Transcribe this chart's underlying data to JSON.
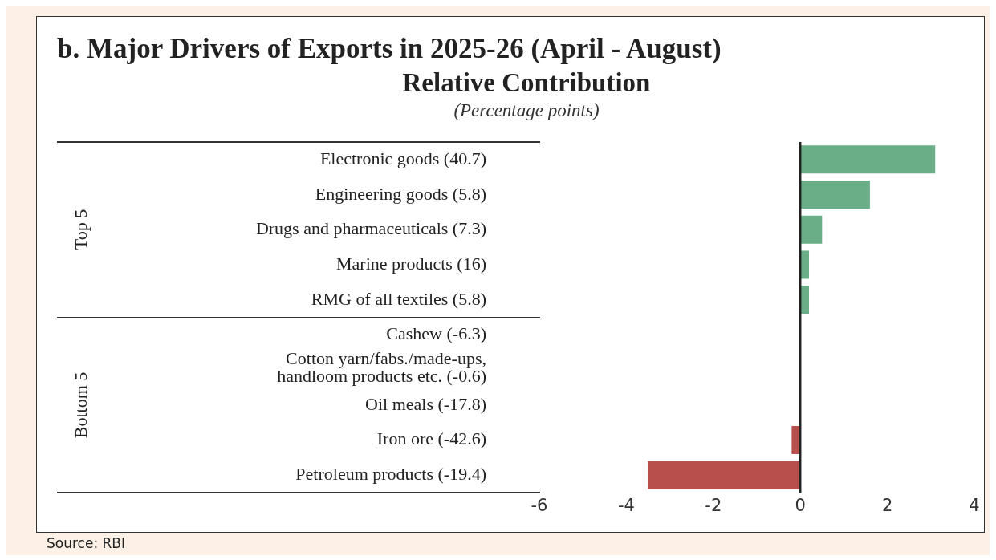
{
  "chart_data": {
    "type": "bar",
    "orientation": "horizontal",
    "title": "b. Major Drivers of Exports in 2025-26 (April - August)",
    "subtitle": "Relative Contribution",
    "xlabel": "(Percentage points)",
    "categories": [
      "Electronic goods (40.7)",
      "Engineering goods (5.8)",
      "Drugs and pharmaceuticals (7.3)",
      "Marine products (16)",
      "RMG of all textiles (5.8)",
      "Cashew (-6.3)",
      "Cotton yarn/fabs./made-ups, handloom products etc. (-0.6)",
      "Oil meals (-17.8)",
      "Iron ore (-42.6)",
      "Petroleum products (-19.4)"
    ],
    "values": [
      3.1,
      1.6,
      0.5,
      0.2,
      0.2,
      -0.02,
      -0.01,
      -0.01,
      -0.2,
      -3.5
    ],
    "colors": [
      "#6aae88",
      "#6aae88",
      "#6aae88",
      "#6aae88",
      "#6aae88",
      "#b94f4d",
      "#b94f4d",
      "#b94f4d",
      "#b94f4d",
      "#b94f4d"
    ],
    "xlim": [
      -6,
      4
    ],
    "xticks": [
      -6,
      -4,
      -2,
      0,
      2,
      4
    ],
    "ref_lines": [
      {
        "axis": "x",
        "value": 0,
        "color": "#222222"
      }
    ],
    "grid": false,
    "legend": false,
    "annotations": [
      "Top 5",
      "Bottom 5",
      "Source: RBI"
    ]
  }
}
